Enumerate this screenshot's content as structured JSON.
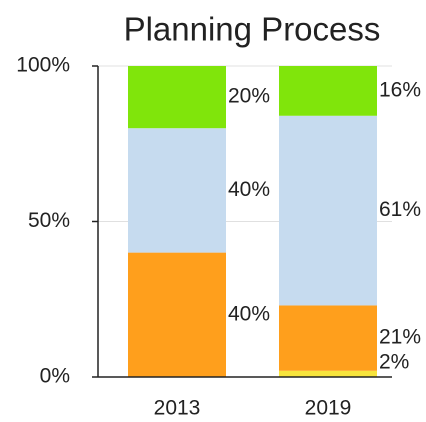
{
  "chart_data": {
    "type": "stacked_bar",
    "title": "Planning Process",
    "categories": [
      "2013",
      "2019"
    ],
    "series": [
      {
        "color": "#f7e43c",
        "values": [
          0,
          2
        ],
        "value_labels": [
          null,
          "2%"
        ]
      },
      {
        "color": "#ff9f1c",
        "values": [
          40,
          21
        ],
        "value_labels": [
          "40%",
          "21%"
        ]
      },
      {
        "color": "#c6dbef",
        "values": [
          40,
          61
        ],
        "value_labels": [
          "40%",
          "61%"
        ]
      },
      {
        "color": "#80e50b",
        "values": [
          20,
          16
        ],
        "value_labels": [
          "20%",
          "16%"
        ]
      }
    ],
    "ylim": [
      0,
      100
    ],
    "yticks": [
      {
        "value": 0,
        "label": "0%"
      },
      {
        "value": 50,
        "label": "50%"
      },
      {
        "value": 100,
        "label": "100%"
      }
    ],
    "grid": true
  }
}
